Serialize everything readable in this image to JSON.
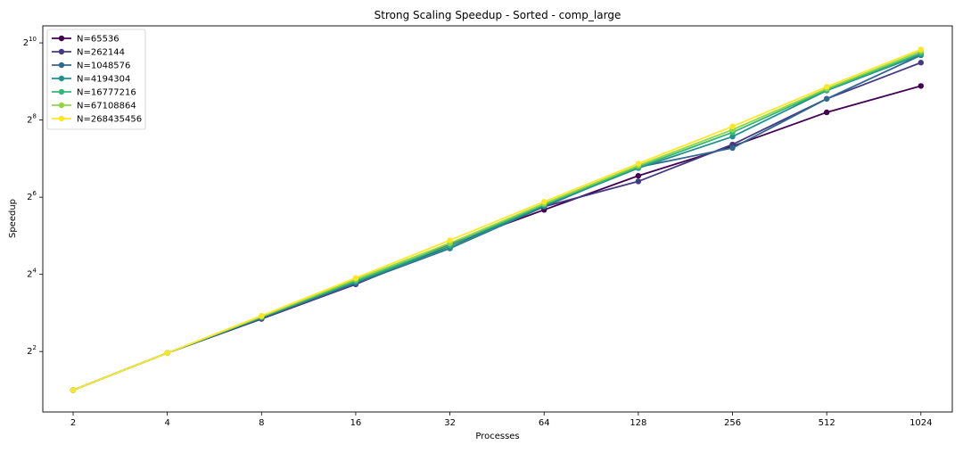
{
  "chart_data": {
    "type": "line",
    "title": "Strong Scaling Speedup - Sorted - comp_large",
    "xlabel": "Processes",
    "ylabel": "Speedup",
    "x_scale": "log2",
    "y_scale": "log2",
    "x": [
      2,
      4,
      8,
      16,
      32,
      64,
      128,
      256,
      512,
      1024
    ],
    "x_tick_labels": [
      "2",
      "4",
      "8",
      "16",
      "32",
      "64",
      "128",
      "256",
      "512",
      "1024"
    ],
    "y_ticks": [
      {
        "base": "2",
        "exp": "2",
        "value": 4
      },
      {
        "base": "2",
        "exp": "4",
        "value": 16
      },
      {
        "base": "2",
        "exp": "6",
        "value": 64
      },
      {
        "base": "2",
        "exp": "8",
        "value": 256
      },
      {
        "base": "2",
        "exp": "10",
        "value": 1024
      }
    ],
    "xlim": [
      1.6,
      1290
    ],
    "ylim": [
      1.35,
      1390
    ],
    "legend_position": "top-left",
    "grid": false,
    "series": [
      {
        "name": "N=65536",
        "color": "#440154",
        "values": [
          2.0,
          3.9,
          7.2,
          13.4,
          27.5,
          51.0,
          94.0,
          160.0,
          294.0,
          472.0
        ]
      },
      {
        "name": "N=262144",
        "color": "#443983",
        "values": [
          2.0,
          3.9,
          7.2,
          13.4,
          26.8,
          54.0,
          85.0,
          165.0,
          375.0,
          718.0
        ]
      },
      {
        "name": "N=1048576",
        "color": "#31688e",
        "values": [
          2.0,
          3.9,
          7.3,
          13.6,
          25.5,
          54.0,
          110.0,
          155.0,
          375.0,
          820.0
        ]
      },
      {
        "name": "N=4194304",
        "color": "#21918c",
        "values": [
          2.0,
          3.9,
          7.4,
          14.0,
          25.8,
          55.0,
          108.0,
          190.0,
          435.0,
          828.0
        ]
      },
      {
        "name": "N=16777216",
        "color": "#35b779",
        "values": [
          2.0,
          3.9,
          7.4,
          14.2,
          27.0,
          56.0,
          110.0,
          205.0,
          440.0,
          850.0
        ]
      },
      {
        "name": "N=67108864",
        "color": "#90d743",
        "values": [
          2.0,
          3.9,
          7.5,
          14.6,
          28.0,
          57.0,
          113.0,
          215.0,
          450.0,
          880.0
        ]
      },
      {
        "name": "N=268435456",
        "color": "#fde725",
        "values": [
          2.0,
          3.9,
          7.6,
          15.0,
          29.5,
          59.0,
          117.0,
          228.0,
          465.0,
          910.0
        ]
      }
    ]
  }
}
